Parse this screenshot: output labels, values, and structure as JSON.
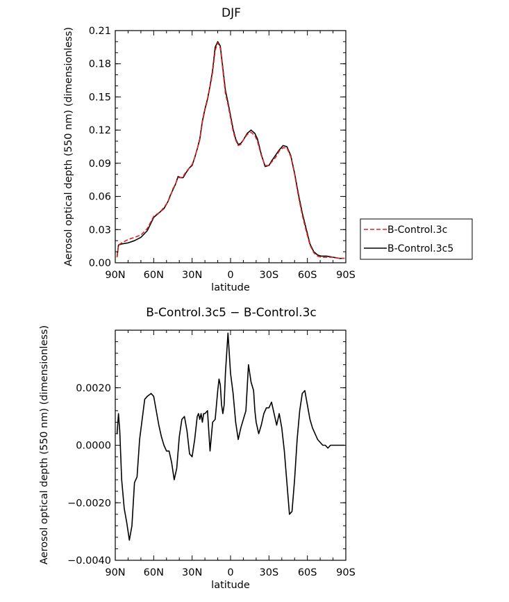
{
  "chart_data": [
    {
      "type": "line",
      "title": "DJF",
      "xlabel": "latitude",
      "ylabel": "Aerosol optical depth (550 nm) (dimensionless)",
      "xlim": [
        90,
        -90
      ],
      "ylim": [
        0,
        0.21
      ],
      "xticks": [
        90,
        60,
        30,
        0,
        -30,
        -60,
        -90
      ],
      "xtick_labels": [
        "90N",
        "60N",
        "30N",
        "0",
        "30S",
        "60S",
        "90S"
      ],
      "yticks": [
        0,
        0.03,
        0.06,
        0.09,
        0.12,
        0.15,
        0.18,
        0.21
      ],
      "ytick_labels": [
        "0.00",
        "0.03",
        "0.06",
        "0.09",
        "0.12",
        "0.15",
        "0.18",
        "0.21"
      ],
      "legend": {
        "position": "right-outside",
        "entries": [
          "B-Control.3c",
          "B-Control.3c5"
        ]
      },
      "series": [
        {
          "name": "B-Control.3c",
          "color": "#e8201e",
          "dash": "dashed",
          "x": [
            88.6,
            87.5,
            85,
            80,
            75,
            70,
            65,
            60,
            55,
            52,
            49,
            47,
            45,
            43,
            41,
            39,
            37,
            35,
            32,
            30,
            28,
            26,
            24,
            22,
            20,
            18,
            16,
            14,
            12,
            10,
            8,
            6,
            4,
            2,
            0,
            -2,
            -4,
            -6,
            -8,
            -10,
            -13,
            -16,
            -19,
            -21,
            -24,
            -27,
            -30,
            -32,
            -35,
            -38,
            -41,
            -44,
            -47,
            -50,
            -53,
            -56,
            -59,
            -62,
            -65,
            -68,
            -71,
            -75,
            -80,
            -85,
            -89
          ],
          "y": [
            0.005,
            0.016,
            0.018,
            0.021,
            0.023,
            0.025,
            0.031,
            0.042,
            0.046,
            0.05,
            0.055,
            0.06,
            0.067,
            0.071,
            0.077,
            0.077,
            0.078,
            0.082,
            0.086,
            0.089,
            0.095,
            0.103,
            0.111,
            0.127,
            0.138,
            0.147,
            0.159,
            0.172,
            0.192,
            0.199,
            0.194,
            0.174,
            0.153,
            0.143,
            0.131,
            0.119,
            0.111,
            0.106,
            0.107,
            0.111,
            0.116,
            0.118,
            0.115,
            0.11,
            0.097,
            0.088,
            0.088,
            0.091,
            0.095,
            0.101,
            0.104,
            0.104,
            0.096,
            0.08,
            0.06,
            0.043,
            0.029,
            0.016,
            0.009,
            0.006,
            0.005,
            0.005,
            0.005,
            0.004,
            0.004
          ]
        },
        {
          "name": "B-Control.3c5",
          "color": "#000000",
          "dash": "solid",
          "x": [
            88.6,
            87.5,
            85,
            80,
            75,
            70,
            65,
            60,
            55,
            52,
            49,
            47,
            45,
            43,
            41,
            39,
            37,
            35,
            32,
            30,
            28,
            26,
            24,
            22,
            20,
            18,
            16,
            14,
            12,
            10,
            8,
            6,
            4,
            2,
            0,
            -2,
            -4,
            -6,
            -8,
            -10,
            -13,
            -16,
            -19,
            -21,
            -24,
            -27,
            -30,
            -32,
            -35,
            -38,
            -41,
            -44,
            -47,
            -50,
            -53,
            -56,
            -59,
            -62,
            -65,
            -68,
            -71,
            -75,
            -80,
            -85,
            -89
          ],
          "y": [
            0.005,
            0.016,
            0.017,
            0.018,
            0.02,
            0.023,
            0.029,
            0.041,
            0.046,
            0.049,
            0.055,
            0.061,
            0.066,
            0.071,
            0.078,
            0.077,
            0.077,
            0.081,
            0.086,
            0.088,
            0.095,
            0.103,
            0.112,
            0.128,
            0.139,
            0.148,
            0.16,
            0.174,
            0.195,
            0.2,
            0.196,
            0.176,
            0.156,
            0.145,
            0.133,
            0.121,
            0.112,
            0.107,
            0.108,
            0.111,
            0.117,
            0.12,
            0.117,
            0.112,
            0.098,
            0.087,
            0.088,
            0.092,
            0.097,
            0.102,
            0.106,
            0.105,
            0.097,
            0.081,
            0.062,
            0.045,
            0.031,
            0.017,
            0.01,
            0.007,
            0.006,
            0.006,
            0.005,
            0.004,
            0.004
          ]
        }
      ]
    },
    {
      "type": "line",
      "title": "B-Control.3c5 − B-Control.3c",
      "xlabel": "latitude",
      "ylabel": "Aerosol optical depth (550 nm) (dimensionless)",
      "xlim": [
        90,
        -90
      ],
      "ylim": [
        -0.004,
        0.004
      ],
      "xticks": [
        90,
        60,
        30,
        0,
        -30,
        -60,
        -90
      ],
      "xtick_labels": [
        "90N",
        "60N",
        "30N",
        "0",
        "30S",
        "60S",
        "90S"
      ],
      "yticks": [
        -0.004,
        -0.002,
        0,
        0.002
      ],
      "ytick_labels": [
        "−0.0040",
        "−0.0020",
        "0.0000",
        "0.0020"
      ],
      "series": [
        {
          "name": "difference",
          "color": "#000000",
          "dash": "solid",
          "x": [
            88.6,
            87.5,
            86.5,
            85,
            83,
            81,
            79,
            77,
            75,
            73,
            71,
            69,
            67,
            65,
            62,
            60,
            58,
            56,
            54,
            52,
            50,
            48,
            46,
            44,
            42,
            40,
            38,
            36,
            34,
            32,
            30,
            28,
            26,
            25,
            24,
            23,
            22,
            21,
            20,
            18,
            16,
            14,
            12,
            10,
            9,
            8,
            7,
            6,
            5,
            4,
            2,
            0,
            -2,
            -4,
            -6,
            -8,
            -10,
            -12,
            -14,
            -16,
            -18,
            -19,
            -20,
            -22,
            -24,
            -26,
            -28,
            -30,
            -32,
            -34,
            -36,
            -38,
            -40,
            -42,
            -44,
            -46,
            -48,
            -50,
            -52,
            -54,
            -56,
            -58,
            -60,
            -62,
            -64,
            -66,
            -68,
            -70,
            -72,
            -74,
            -76,
            -78,
            -80,
            -82,
            -84,
            -86,
            -88,
            -89
          ],
          "y": [
            0.0004,
            0.0011,
            0.0005,
            -0.0012,
            -0.0022,
            -0.0027,
            -0.0033,
            -0.0028,
            -0.0013,
            -0.0011,
            0.0002,
            0.0009,
            0.0016,
            0.0017,
            0.0018,
            0.0017,
            0.0012,
            0.0007,
            0.0003,
            0.0,
            -0.0002,
            -0.0002,
            -0.0006,
            -0.0012,
            -0.0008,
            0.0003,
            0.0009,
            0.001,
            0.0005,
            -0.0003,
            -0.0004,
            0.0002,
            0.001,
            0.0011,
            0.0009,
            0.0011,
            0.0008,
            0.0011,
            0.0011,
            0.0012,
            -0.0002,
            0.0008,
            0.0009,
            0.0019,
            0.0023,
            0.0021,
            0.0014,
            0.0011,
            0.0014,
            0.0025,
            0.0039,
            0.0025,
            0.0018,
            0.0008,
            0.0002,
            0.0006,
            0.0009,
            0.0012,
            0.0028,
            0.0022,
            0.0019,
            0.0012,
            0.0008,
            0.0004,
            0.0007,
            0.0011,
            0.0013,
            0.0013,
            0.0015,
            0.0011,
            0.0007,
            0.0011,
            0.0006,
            -0.0002,
            -0.0013,
            -0.0024,
            -0.0023,
            -0.0012,
            0.0002,
            0.0012,
            0.0018,
            0.0019,
            0.0014,
            0.0009,
            0.0006,
            0.0004,
            0.0002,
            0.0001,
            0.0,
            0.0,
            -0.0001,
            0.0,
            0.0,
            0.0,
            0.0,
            0.0,
            0.0,
            0.0
          ]
        }
      ]
    }
  ]
}
